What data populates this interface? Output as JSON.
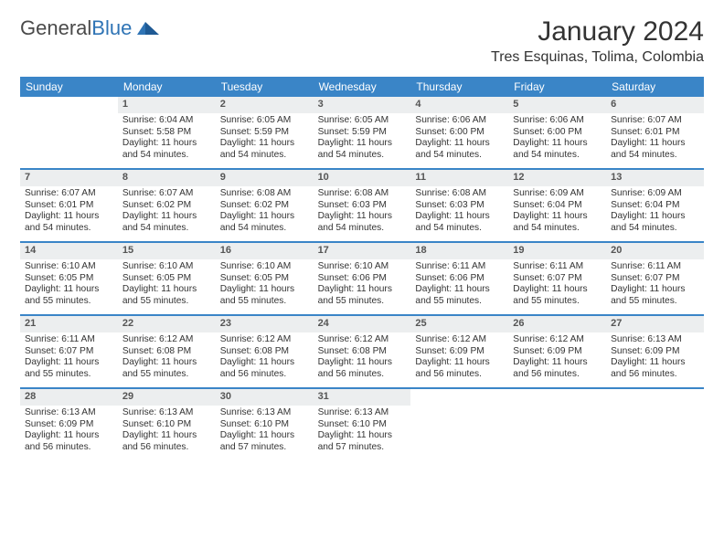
{
  "brand": {
    "part1": "General",
    "part2": "Blue"
  },
  "title": "January 2024",
  "location": "Tres Esquinas, Tolima, Colombia",
  "colors": {
    "header_bg": "#3a85c7",
    "header_text": "#ffffff",
    "daynum_bg": "#eceeef",
    "week_border": "#3a85c7",
    "text": "#333333",
    "logo_gray": "#4a4a4a",
    "logo_blue": "#2f74b5"
  },
  "weekdays": [
    "Sunday",
    "Monday",
    "Tuesday",
    "Wednesday",
    "Thursday",
    "Friday",
    "Saturday"
  ],
  "weeks": [
    [
      {
        "n": "",
        "sr": "",
        "ss": "",
        "dl": ""
      },
      {
        "n": "1",
        "sr": "Sunrise: 6:04 AM",
        "ss": "Sunset: 5:58 PM",
        "dl": "Daylight: 11 hours and 54 minutes."
      },
      {
        "n": "2",
        "sr": "Sunrise: 6:05 AM",
        "ss": "Sunset: 5:59 PM",
        "dl": "Daylight: 11 hours and 54 minutes."
      },
      {
        "n": "3",
        "sr": "Sunrise: 6:05 AM",
        "ss": "Sunset: 5:59 PM",
        "dl": "Daylight: 11 hours and 54 minutes."
      },
      {
        "n": "4",
        "sr": "Sunrise: 6:06 AM",
        "ss": "Sunset: 6:00 PM",
        "dl": "Daylight: 11 hours and 54 minutes."
      },
      {
        "n": "5",
        "sr": "Sunrise: 6:06 AM",
        "ss": "Sunset: 6:00 PM",
        "dl": "Daylight: 11 hours and 54 minutes."
      },
      {
        "n": "6",
        "sr": "Sunrise: 6:07 AM",
        "ss": "Sunset: 6:01 PM",
        "dl": "Daylight: 11 hours and 54 minutes."
      }
    ],
    [
      {
        "n": "7",
        "sr": "Sunrise: 6:07 AM",
        "ss": "Sunset: 6:01 PM",
        "dl": "Daylight: 11 hours and 54 minutes."
      },
      {
        "n": "8",
        "sr": "Sunrise: 6:07 AM",
        "ss": "Sunset: 6:02 PM",
        "dl": "Daylight: 11 hours and 54 minutes."
      },
      {
        "n": "9",
        "sr": "Sunrise: 6:08 AM",
        "ss": "Sunset: 6:02 PM",
        "dl": "Daylight: 11 hours and 54 minutes."
      },
      {
        "n": "10",
        "sr": "Sunrise: 6:08 AM",
        "ss": "Sunset: 6:03 PM",
        "dl": "Daylight: 11 hours and 54 minutes."
      },
      {
        "n": "11",
        "sr": "Sunrise: 6:08 AM",
        "ss": "Sunset: 6:03 PM",
        "dl": "Daylight: 11 hours and 54 minutes."
      },
      {
        "n": "12",
        "sr": "Sunrise: 6:09 AM",
        "ss": "Sunset: 6:04 PM",
        "dl": "Daylight: 11 hours and 54 minutes."
      },
      {
        "n": "13",
        "sr": "Sunrise: 6:09 AM",
        "ss": "Sunset: 6:04 PM",
        "dl": "Daylight: 11 hours and 54 minutes."
      }
    ],
    [
      {
        "n": "14",
        "sr": "Sunrise: 6:10 AM",
        "ss": "Sunset: 6:05 PM",
        "dl": "Daylight: 11 hours and 55 minutes."
      },
      {
        "n": "15",
        "sr": "Sunrise: 6:10 AM",
        "ss": "Sunset: 6:05 PM",
        "dl": "Daylight: 11 hours and 55 minutes."
      },
      {
        "n": "16",
        "sr": "Sunrise: 6:10 AM",
        "ss": "Sunset: 6:05 PM",
        "dl": "Daylight: 11 hours and 55 minutes."
      },
      {
        "n": "17",
        "sr": "Sunrise: 6:10 AM",
        "ss": "Sunset: 6:06 PM",
        "dl": "Daylight: 11 hours and 55 minutes."
      },
      {
        "n": "18",
        "sr": "Sunrise: 6:11 AM",
        "ss": "Sunset: 6:06 PM",
        "dl": "Daylight: 11 hours and 55 minutes."
      },
      {
        "n": "19",
        "sr": "Sunrise: 6:11 AM",
        "ss": "Sunset: 6:07 PM",
        "dl": "Daylight: 11 hours and 55 minutes."
      },
      {
        "n": "20",
        "sr": "Sunrise: 6:11 AM",
        "ss": "Sunset: 6:07 PM",
        "dl": "Daylight: 11 hours and 55 minutes."
      }
    ],
    [
      {
        "n": "21",
        "sr": "Sunrise: 6:11 AM",
        "ss": "Sunset: 6:07 PM",
        "dl": "Daylight: 11 hours and 55 minutes."
      },
      {
        "n": "22",
        "sr": "Sunrise: 6:12 AM",
        "ss": "Sunset: 6:08 PM",
        "dl": "Daylight: 11 hours and 55 minutes."
      },
      {
        "n": "23",
        "sr": "Sunrise: 6:12 AM",
        "ss": "Sunset: 6:08 PM",
        "dl": "Daylight: 11 hours and 56 minutes."
      },
      {
        "n": "24",
        "sr": "Sunrise: 6:12 AM",
        "ss": "Sunset: 6:08 PM",
        "dl": "Daylight: 11 hours and 56 minutes."
      },
      {
        "n": "25",
        "sr": "Sunrise: 6:12 AM",
        "ss": "Sunset: 6:09 PM",
        "dl": "Daylight: 11 hours and 56 minutes."
      },
      {
        "n": "26",
        "sr": "Sunrise: 6:12 AM",
        "ss": "Sunset: 6:09 PM",
        "dl": "Daylight: 11 hours and 56 minutes."
      },
      {
        "n": "27",
        "sr": "Sunrise: 6:13 AM",
        "ss": "Sunset: 6:09 PM",
        "dl": "Daylight: 11 hours and 56 minutes."
      }
    ],
    [
      {
        "n": "28",
        "sr": "Sunrise: 6:13 AM",
        "ss": "Sunset: 6:09 PM",
        "dl": "Daylight: 11 hours and 56 minutes."
      },
      {
        "n": "29",
        "sr": "Sunrise: 6:13 AM",
        "ss": "Sunset: 6:10 PM",
        "dl": "Daylight: 11 hours and 56 minutes."
      },
      {
        "n": "30",
        "sr": "Sunrise: 6:13 AM",
        "ss": "Sunset: 6:10 PM",
        "dl": "Daylight: 11 hours and 57 minutes."
      },
      {
        "n": "31",
        "sr": "Sunrise: 6:13 AM",
        "ss": "Sunset: 6:10 PM",
        "dl": "Daylight: 11 hours and 57 minutes."
      },
      {
        "n": "",
        "sr": "",
        "ss": "",
        "dl": ""
      },
      {
        "n": "",
        "sr": "",
        "ss": "",
        "dl": ""
      },
      {
        "n": "",
        "sr": "",
        "ss": "",
        "dl": ""
      }
    ]
  ]
}
